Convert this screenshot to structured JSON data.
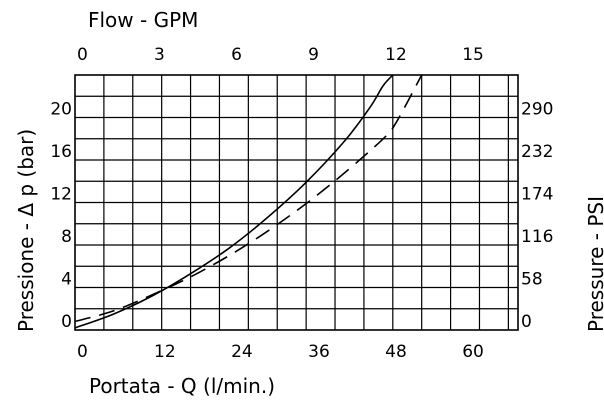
{
  "chart_data": {
    "type": "line",
    "xlabel_bottom": "Portata - Q (l/min.)",
    "xlabel_top": "Flow - GPM",
    "ylabel_left": "Pressione - Δ p (bar)",
    "ylabel_right": "Pressure - PSI",
    "x_ticks_bottom": [
      "0",
      "12",
      "24",
      "36",
      "48",
      "60"
    ],
    "x_ticks_top": [
      "0",
      "3",
      "6",
      "9",
      "12",
      "15"
    ],
    "y_ticks_left": [
      "0",
      "4",
      "8",
      "12",
      "16",
      "20"
    ],
    "y_ticks_right": [
      "0",
      "58",
      "116",
      "174",
      "232",
      "290"
    ],
    "xlim": [
      0,
      69
    ],
    "ylim": [
      0,
      24
    ],
    "grid": true,
    "series": [
      {
        "style": "solid",
        "points": [
          [
            0,
            0.2
          ],
          [
            6,
            1.5
          ],
          [
            12,
            3.2
          ],
          [
            18,
            5.3
          ],
          [
            24,
            7.7
          ],
          [
            30,
            10.6
          ],
          [
            36,
            13.9
          ],
          [
            42,
            17.8
          ],
          [
            46,
            21.0
          ],
          [
            48,
            23.0
          ],
          [
            49.5,
            24.0
          ]
        ]
      },
      {
        "style": "dashed",
        "points": [
          [
            0,
            0.8
          ],
          [
            6,
            1.8
          ],
          [
            12,
            3.3
          ],
          [
            18,
            5.0
          ],
          [
            24,
            7.0
          ],
          [
            30,
            9.3
          ],
          [
            36,
            11.9
          ],
          [
            42,
            14.8
          ],
          [
            48,
            18.0
          ],
          [
            50,
            19.5
          ],
          [
            54,
            24.0
          ]
        ]
      }
    ]
  }
}
